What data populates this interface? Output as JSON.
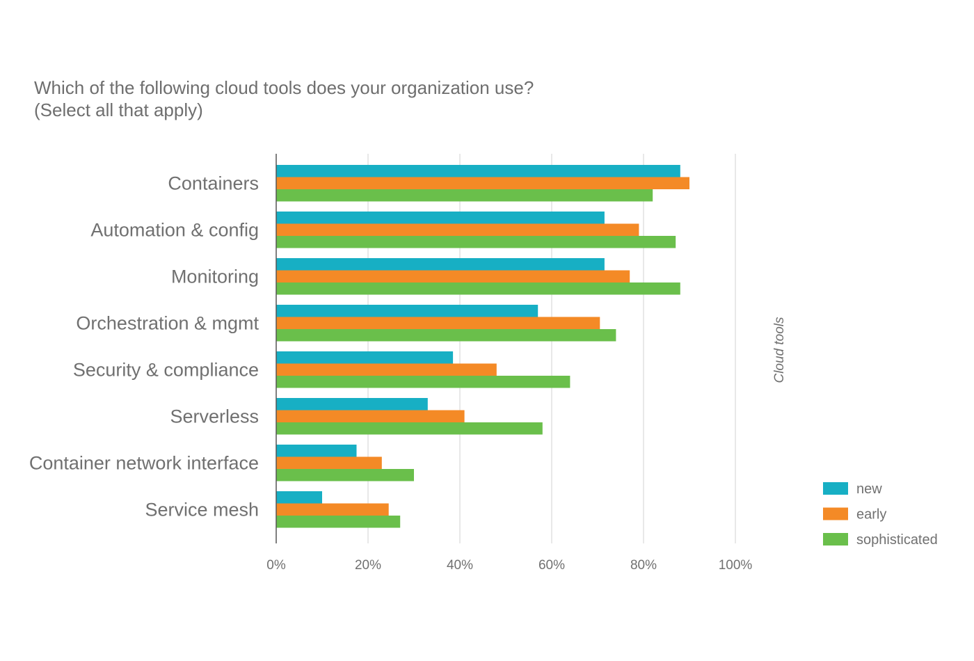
{
  "chart_data": {
    "type": "bar",
    "orientation": "horizontal",
    "title": [
      "Which of the following cloud tools does your organization use?",
      "(Select all that apply)"
    ],
    "side_label": "Cloud tools",
    "categories": [
      "Containers",
      "Automation & config",
      "Monitoring",
      "Orchestration & mgmt",
      "Security & compliance",
      "Serverless",
      "Container network interface",
      "Service mesh"
    ],
    "series": [
      {
        "name": "new",
        "color": "#17afc4",
        "values": [
          88,
          71.5,
          71.5,
          57,
          38.5,
          33,
          17.5,
          10
        ]
      },
      {
        "name": "early",
        "color": "#f48a26",
        "values": [
          90,
          79,
          77,
          70.5,
          48,
          41,
          23,
          24.5
        ]
      },
      {
        "name": "sophisticated",
        "color": "#6abf4b",
        "values": [
          82,
          87,
          88,
          74,
          64,
          58,
          30,
          27
        ]
      }
    ],
    "x_ticks": [
      "0%",
      "20%",
      "40%",
      "60%",
      "80%",
      "100%"
    ],
    "x_tick_values": [
      0,
      20,
      40,
      60,
      80,
      100
    ],
    "xlim": [
      0,
      100
    ],
    "grid": true,
    "legend_position": "bottom-right"
  }
}
